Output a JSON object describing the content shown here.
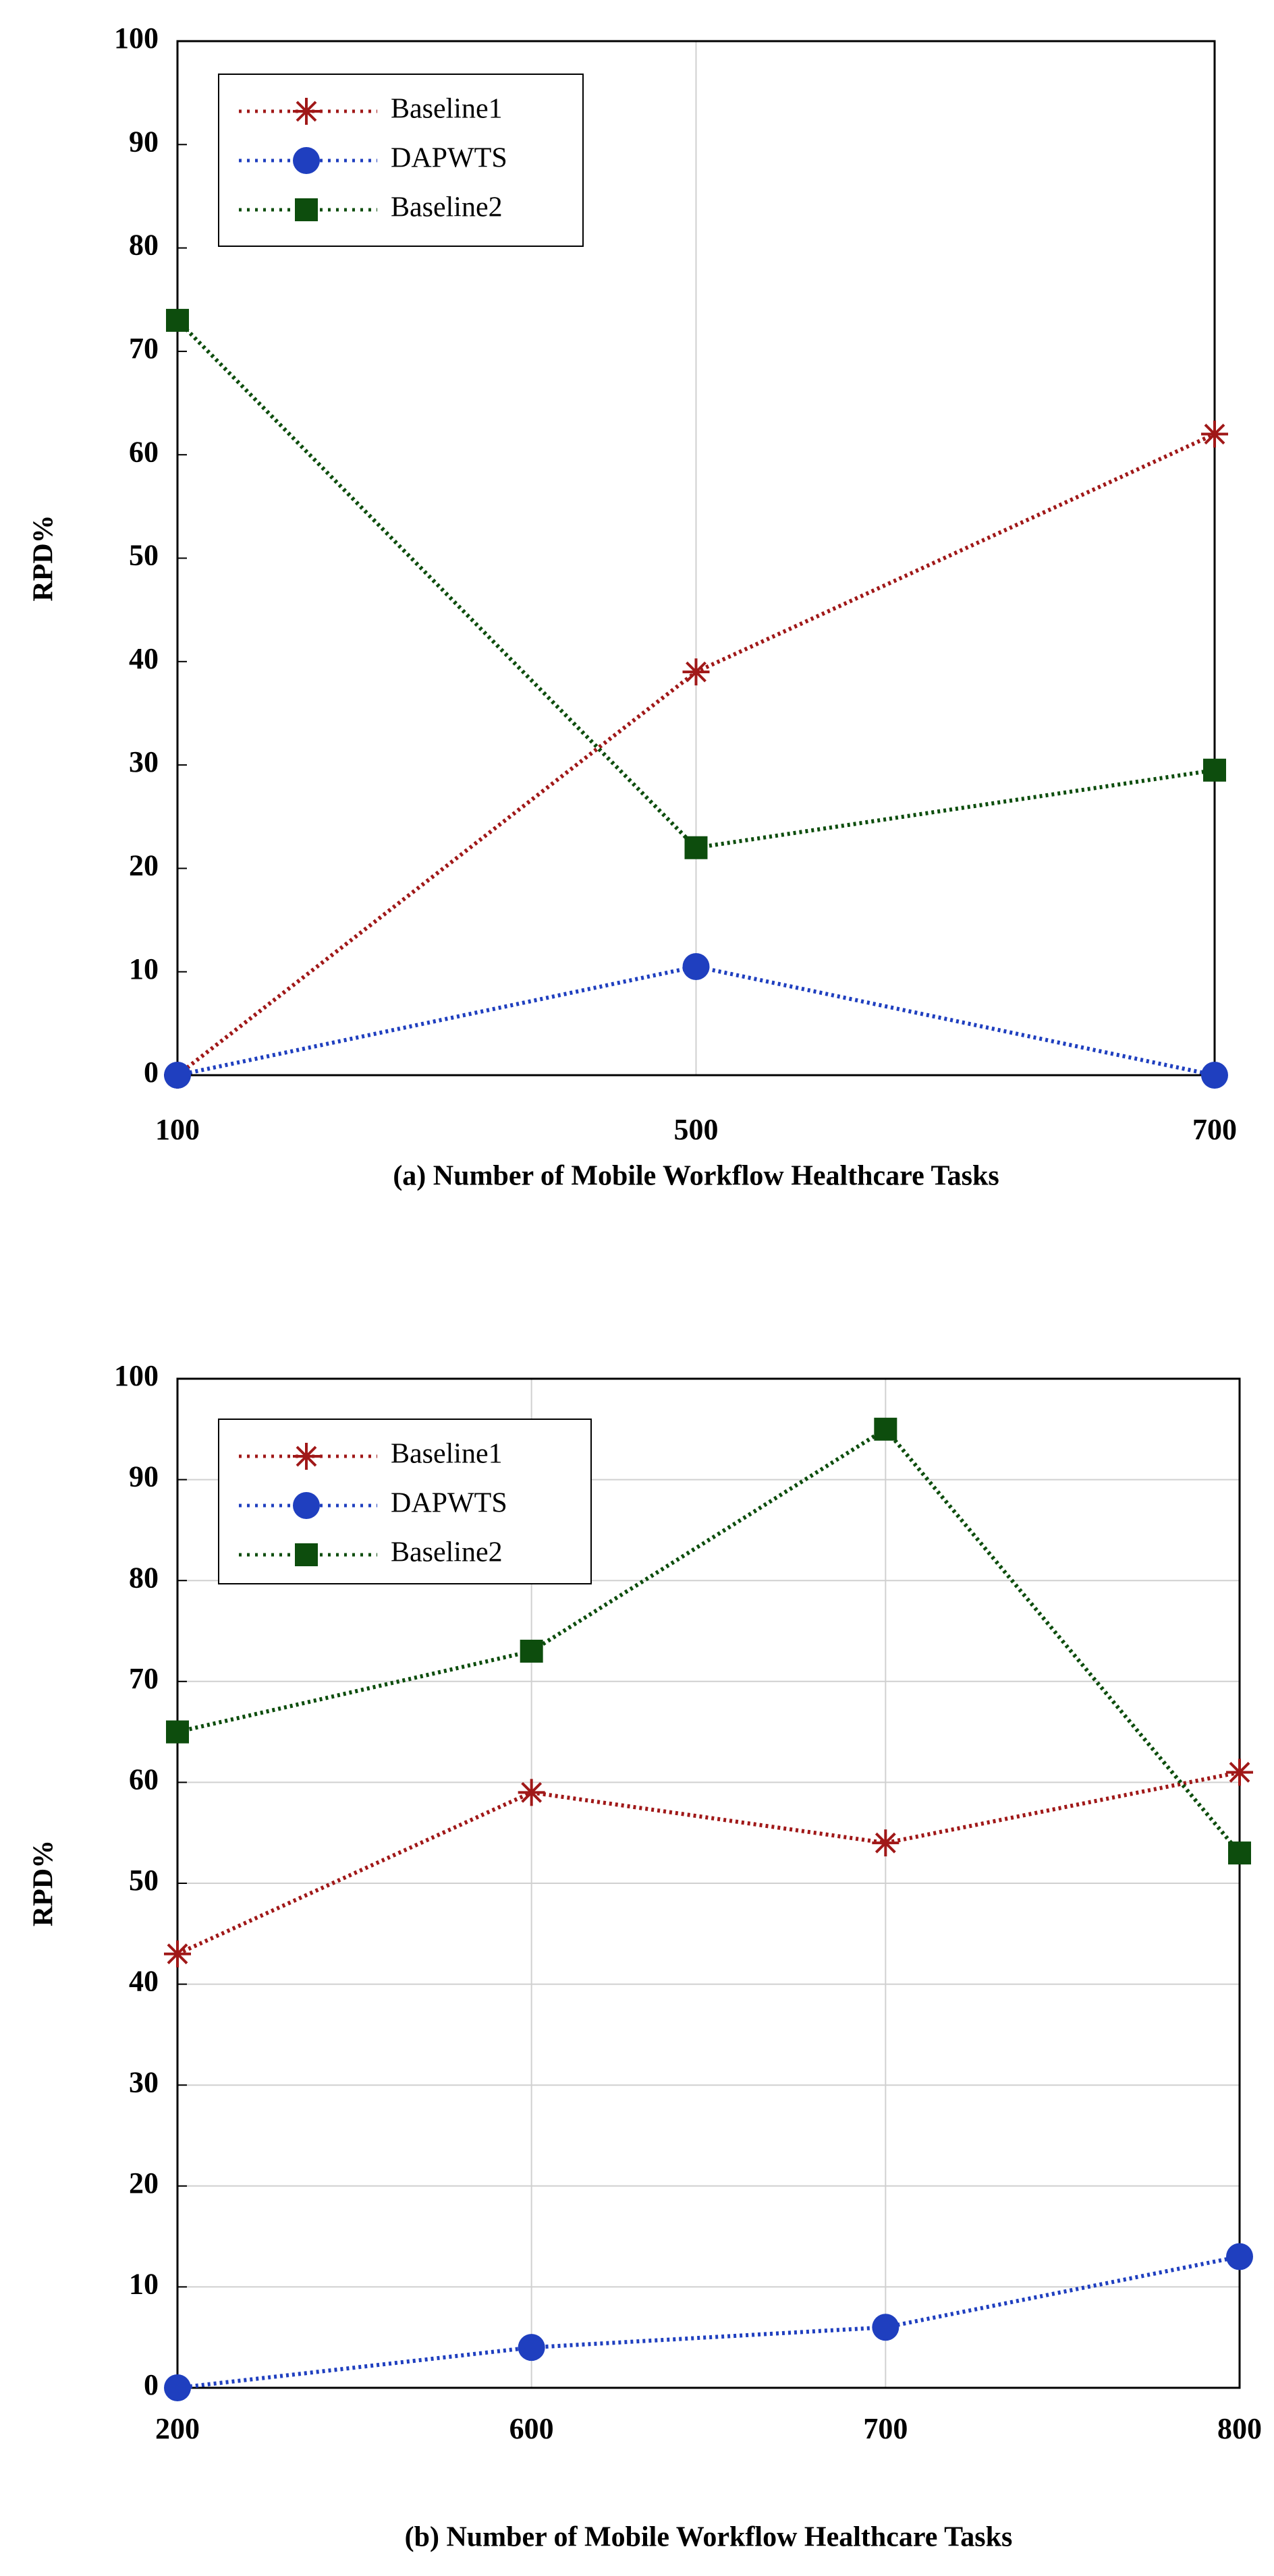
{
  "chart_data": [
    {
      "type": "line",
      "x_label": "(a) Number of Mobile Workflow Healthcare Tasks",
      "y_label": "RPD%",
      "categories": [
        "100",
        "500",
        "700"
      ],
      "series": [
        {
          "name": "Baseline1",
          "color": "#a01818",
          "marker": "star",
          "values": [
            0,
            39,
            62
          ]
        },
        {
          "name": "DAPWTS",
          "color": "#1f3fbf",
          "marker": "circle",
          "values": [
            0,
            10.5,
            0
          ]
        },
        {
          "name": "Baseline2",
          "color": "#0d4d0d",
          "marker": "square",
          "values": [
            73,
            22,
            29.5
          ]
        }
      ],
      "ylim": [
        0,
        100
      ],
      "yticks": [
        0,
        10,
        20,
        30,
        40,
        50,
        60,
        70,
        80,
        90,
        100
      ],
      "xgrid": true,
      "ygrid": false,
      "legend": "upper left"
    },
    {
      "type": "line",
      "x_label": "(b) Number of Mobile Workflow Healthcare Tasks",
      "y_label": "RPD%",
      "categories": [
        "200",
        "600",
        "700",
        "800"
      ],
      "series": [
        {
          "name": "Baseline1",
          "color": "#a01818",
          "marker": "star",
          "values": [
            43,
            59,
            54,
            61
          ]
        },
        {
          "name": "DAPWTS",
          "color": "#1f3fbf",
          "marker": "circle",
          "values": [
            0,
            4,
            6,
            13
          ]
        },
        {
          "name": "Baseline2",
          "color": "#0d4d0d",
          "marker": "square",
          "values": [
            65,
            73,
            95,
            53
          ]
        }
      ],
      "ylim": [
        0,
        100
      ],
      "yticks": [
        0,
        10,
        20,
        30,
        40,
        50,
        60,
        70,
        80,
        90,
        100
      ],
      "xgrid": true,
      "ygrid": true,
      "legend": "upper left"
    }
  ]
}
